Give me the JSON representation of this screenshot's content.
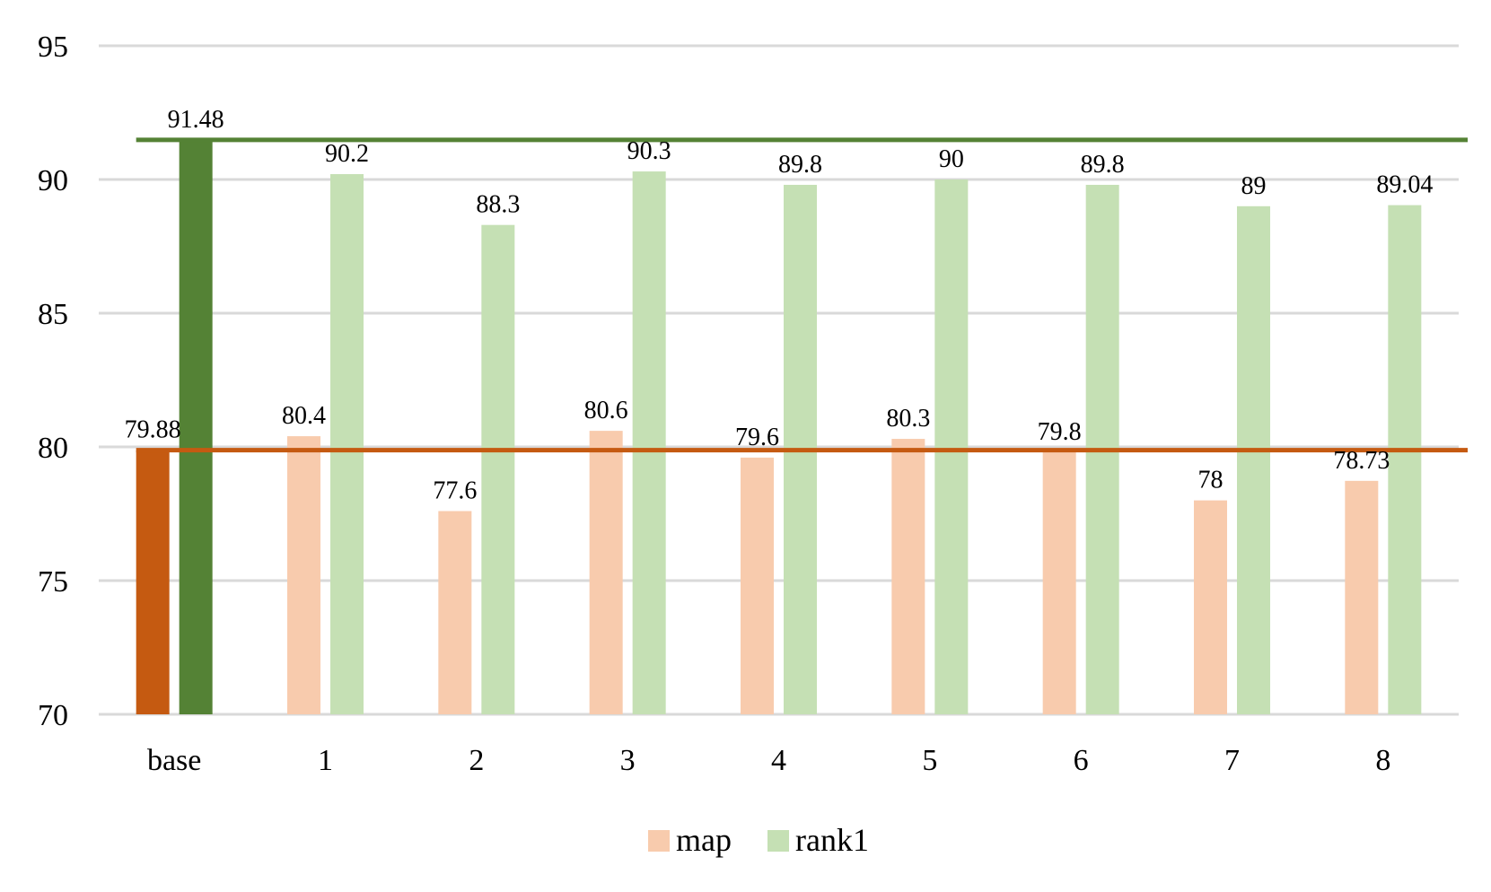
{
  "chart_data": {
    "type": "bar",
    "title": "",
    "xlabel": "",
    "ylabel": "",
    "ylim": [
      70,
      95
    ],
    "yticks": [
      70,
      75,
      80,
      85,
      90,
      95
    ],
    "grid": true,
    "legend_position": "bottom",
    "categories": [
      "base",
      "1",
      "2",
      "3",
      "4",
      "5",
      "6",
      "7",
      "8"
    ],
    "series": [
      {
        "name": "map",
        "color": "#F8CBAD",
        "highlight_color": "#C55A11",
        "values": [
          79.88,
          80.4,
          77.6,
          80.6,
          79.6,
          80.3,
          79.8,
          78,
          78.73
        ],
        "labels": [
          "79.88",
          "80.4",
          "77.6",
          "80.6",
          "79.6",
          "80.3",
          "79.8",
          "78",
          "78.73"
        ]
      },
      {
        "name": "rank1",
        "color": "#C5E0B4",
        "highlight_color": "#548235",
        "values": [
          91.48,
          90.2,
          88.3,
          90.3,
          89.8,
          90,
          89.8,
          89,
          89.04
        ],
        "labels": [
          "91.48",
          "90.2",
          "88.3",
          "90.3",
          "89.8",
          "90",
          "89.8",
          "89",
          "89.04"
        ]
      }
    ],
    "reference_lines": [
      {
        "value": 79.88,
        "color": "#C55A11"
      },
      {
        "value": 91.48,
        "color": "#548235"
      }
    ]
  }
}
